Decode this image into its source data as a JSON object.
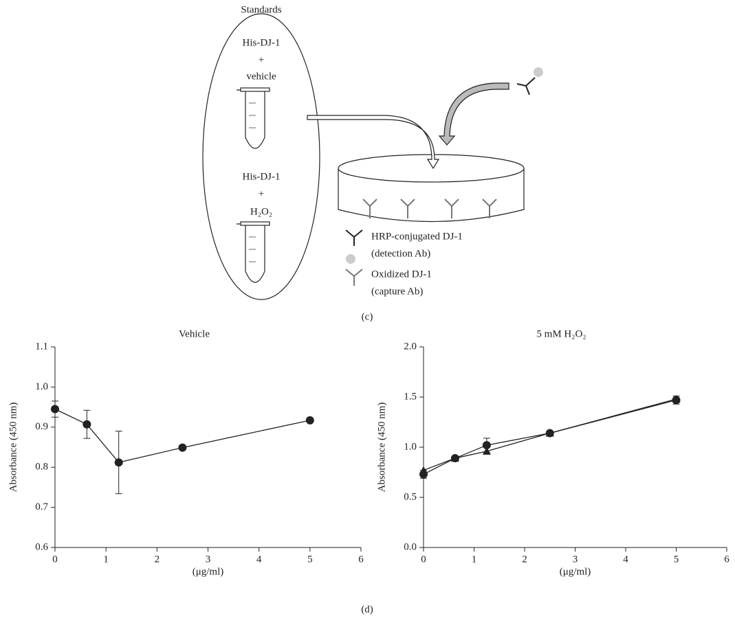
{
  "diagram": {
    "standards": "Standards",
    "tube1": {
      "line1": "His-DJ-1",
      "line2": "+",
      "line3": "vehicle"
    },
    "tube2": {
      "line1": "His-DJ-1",
      "line2": "+",
      "line3": "H₂O₂"
    },
    "legend": {
      "detection": "HRP-conjugated DJ-1",
      "detection_sub": "(detection Ab)",
      "capture": "Oxidized DJ-1",
      "capture_sub": "(capture Ab)"
    },
    "panel": "(c)"
  },
  "panel_d": "(d)",
  "chart_data": [
    {
      "type": "line",
      "title": "Vehicle",
      "ylabel": "Absorbance (450 nm)",
      "xlabel": "(μg/ml)",
      "x": [
        0,
        0.625,
        1.25,
        2.5,
        5
      ],
      "series": [
        {
          "color": "#222222",
          "marker": "circle",
          "values": [
            0.945,
            0.907,
            0.812,
            0.849,
            0.917
          ],
          "errors": [
            0.02,
            0.035,
            0.078,
            0.004,
            0.004
          ]
        }
      ],
      "xlim": [
        0,
        6
      ],
      "xticks": [
        0,
        1,
        2,
        3,
        4,
        5,
        6
      ],
      "ylim": [
        0.6,
        1.1
      ],
      "yticks": [
        0.6,
        0.7,
        0.8,
        0.9,
        {
          "value": 1,
          "label": "1.0"
        },
        1.1
      ]
    },
    {
      "type": "line",
      "title": "5 mM H₂O₂",
      "ylabel": "Absorbance (450 nm)",
      "xlabel": "(μg/ml)",
      "x": [
        0,
        0.625,
        1.25,
        2.5,
        5
      ],
      "series": [
        {
          "color": "#222222",
          "marker": "circle",
          "values": [
            0.73,
            0.89,
            1.02,
            1.14,
            1.47
          ],
          "errors": [
            0.04,
            0.02,
            0.07,
            0.01,
            0.04
          ]
        },
        {
          "color": "#222222",
          "marker": "triangle",
          "values": [
            0.77,
            0.89,
            0.96,
            1.14,
            1.48
          ]
        }
      ],
      "xlim": [
        0,
        6
      ],
      "xticks": [
        0,
        1,
        2,
        3,
        4,
        5,
        6
      ],
      "ylim": [
        0,
        2
      ],
      "yticks": [
        {
          "value": 0,
          "label": "0.0"
        },
        0.5,
        {
          "value": 1,
          "label": "1.0"
        },
        1.5,
        {
          "value": 2,
          "label": "2.0"
        }
      ]
    }
  ]
}
